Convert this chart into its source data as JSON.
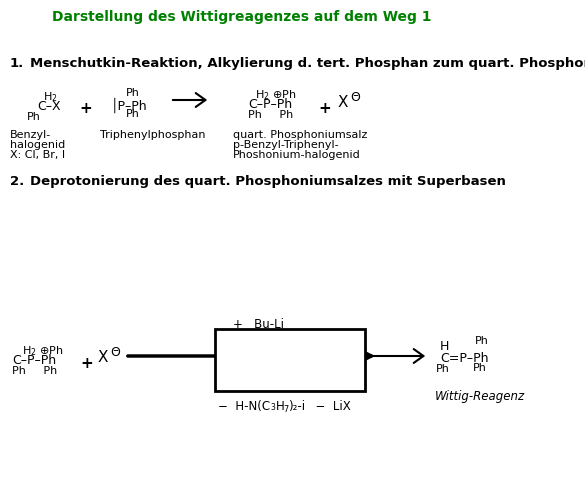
{
  "title": "Darstellung des Wittigreagenzes auf dem Weg 1",
  "title_color": "#008000",
  "bg_color": "#ffffff",
  "section1_label": "1.",
  "section1_text": "Menschutkin-Reaktion, Alkylierung d. tert. Phosphan zum quart. Phosphonium-salz",
  "section2_label": "2.",
  "section2_text": "Deprotonierung des quart. Phosphoniumsalzes mit Superbasen",
  "footer": "Wittig-Reagenz"
}
